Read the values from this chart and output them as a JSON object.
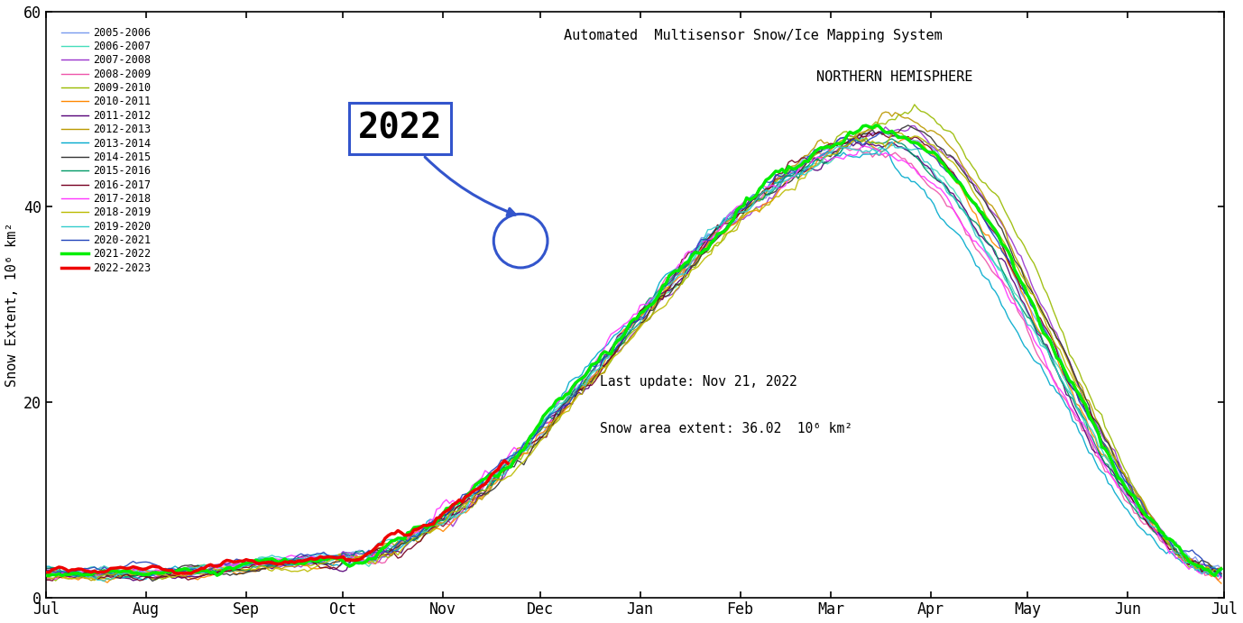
{
  "title1": "Automated  Multisensor Snow/Ice Mapping System",
  "title2": "NORTHERN HEMISPHERE",
  "ylabel": "Snow Extent, 10⁶ km²",
  "last_update": "Last update: Nov 21, 2022",
  "snow_extent": "Snow area extent: 36.02  10⁶ km²",
  "annotation_year": "2022",
  "ylim": [
    0,
    60
  ],
  "yticks": [
    0,
    20,
    40,
    60
  ],
  "months": [
    "Jul",
    "Aug",
    "Sep",
    "Oct",
    "Nov",
    "Dec",
    "Jan",
    "Feb",
    "Mar",
    "Apr",
    "May",
    "Jun",
    "Jul"
  ],
  "series": [
    {
      "label": "2005-2006",
      "color": "#7799EE",
      "lw": 1.0
    },
    {
      "label": "2006-2007",
      "color": "#44DDBB",
      "lw": 1.0
    },
    {
      "label": "2007-2008",
      "color": "#9933CC",
      "lw": 1.0
    },
    {
      "label": "2008-2009",
      "color": "#EE55AA",
      "lw": 1.0
    },
    {
      "label": "2009-2010",
      "color": "#99BB00",
      "lw": 1.0
    },
    {
      "label": "2010-2011",
      "color": "#FF8800",
      "lw": 1.0
    },
    {
      "label": "2011-2012",
      "color": "#550077",
      "lw": 1.0
    },
    {
      "label": "2012-2013",
      "color": "#BB9900",
      "lw": 1.0
    },
    {
      "label": "2013-2014",
      "color": "#00AACC",
      "lw": 1.0
    },
    {
      "label": "2014-2015",
      "color": "#333333",
      "lw": 1.0
    },
    {
      "label": "2015-2016",
      "color": "#009966",
      "lw": 1.0
    },
    {
      "label": "2016-2017",
      "color": "#770022",
      "lw": 1.0
    },
    {
      "label": "2017-2018",
      "color": "#FF33FF",
      "lw": 1.0
    },
    {
      "label": "2018-2019",
      "color": "#BBBB00",
      "lw": 1.0
    },
    {
      "label": "2019-2020",
      "color": "#33CCCC",
      "lw": 1.0
    },
    {
      "label": "2020-2021",
      "color": "#2244BB",
      "lw": 1.0
    },
    {
      "label": "2021-2022",
      "color": "#00EE00",
      "lw": 2.5
    },
    {
      "label": "2022-2023",
      "color": "#EE0000",
      "lw": 2.5
    }
  ],
  "nov21_day": 144,
  "n_days": 365
}
